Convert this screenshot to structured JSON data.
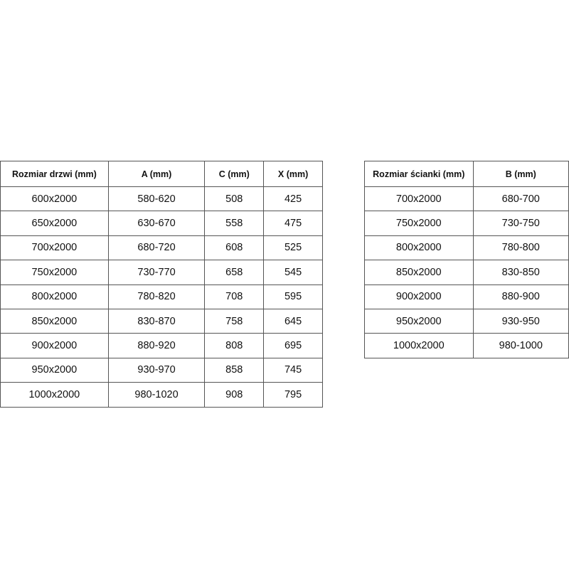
{
  "tables": [
    {
      "header": [
        "Rozmiar drzwi (mm)",
        "A (mm)",
        "C (mm)",
        "X (mm)"
      ],
      "rows": [
        [
          "600x2000",
          "580-620",
          "508",
          "425"
        ],
        [
          "650x2000",
          "630-670",
          "558",
          "475"
        ],
        [
          "700x2000",
          "680-720",
          "608",
          "525"
        ],
        [
          "750x2000",
          "730-770",
          "658",
          "545"
        ],
        [
          "800x2000",
          "780-820",
          "708",
          "595"
        ],
        [
          "850x2000",
          "830-870",
          "758",
          "645"
        ],
        [
          "900x2000",
          "880-920",
          "808",
          "695"
        ],
        [
          "950x2000",
          "930-970",
          "858",
          "745"
        ],
        [
          "1000x2000",
          "980-1020",
          "908",
          "795"
        ]
      ]
    },
    {
      "header": [
        "Rozmiar ścianki (mm)",
        "B (mm)"
      ],
      "rows": [
        [
          "700x2000",
          "680-700"
        ],
        [
          "750x2000",
          "730-750"
        ],
        [
          "800x2000",
          "780-800"
        ],
        [
          "850x2000",
          "830-850"
        ],
        [
          "900x2000",
          "880-900"
        ],
        [
          "950x2000",
          "930-950"
        ],
        [
          "1000x2000",
          "980-1000"
        ]
      ]
    }
  ]
}
